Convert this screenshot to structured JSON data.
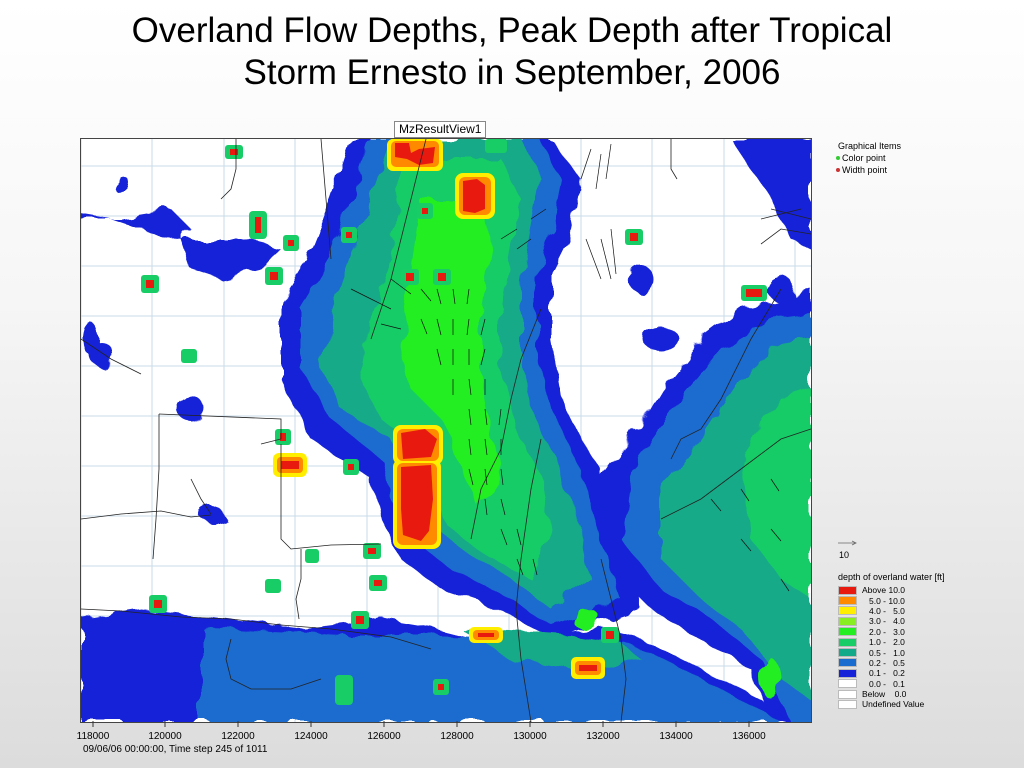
{
  "title": {
    "line1": "Overland Flow Depths, Peak Depth after Tropical",
    "line2": "Storm Ernesto in September, 2006"
  },
  "view_tab": "MzResultView1",
  "x_axis": {
    "tick_labels": [
      "118000",
      "120000",
      "122000",
      "124000",
      "126000",
      "128000",
      "130000",
      "132000",
      "134000",
      "136000"
    ]
  },
  "timestamp": "09/06/06 00:00:00, Time step 245 of 1011",
  "graphical_items": {
    "title": "Graphical Items",
    "items": [
      {
        "label": "Color point",
        "color": "#33cc33"
      },
      {
        "label": "Width point",
        "color": "#cc3333"
      }
    ]
  },
  "vector_legend": {
    "value": "10"
  },
  "depth_legend": {
    "title": "depth of overland water [ft]",
    "rows": [
      {
        "label": "Above 10.0",
        "color": "#e81a10"
      },
      {
        "label": "5.0 - 10.0",
        "color": "#ff8a00"
      },
      {
        "label": "4.0 -   5.0",
        "color": "#ffee00"
      },
      {
        "label": "3.0 -   4.0",
        "color": "#88ee22"
      },
      {
        "label": "2.0 -   3.0",
        "color": "#22ee22"
      },
      {
        "label": "1.0 -   2.0",
        "color": "#18cc66"
      },
      {
        "label": "0.5 -   1.0",
        "color": "#12aa88"
      },
      {
        "label": "0.2 -   0.5",
        "color": "#1a6ccf"
      },
      {
        "label": "0.1 -   0.2",
        "color": "#1522d8"
      },
      {
        "label": "0.0 -   0.1",
        "color": "#ffffff"
      },
      {
        "label": "Below    0.0",
        "color": "#ffffff"
      },
      {
        "label": "Undefined Value",
        "color": "#ffffff"
      }
    ]
  }
}
